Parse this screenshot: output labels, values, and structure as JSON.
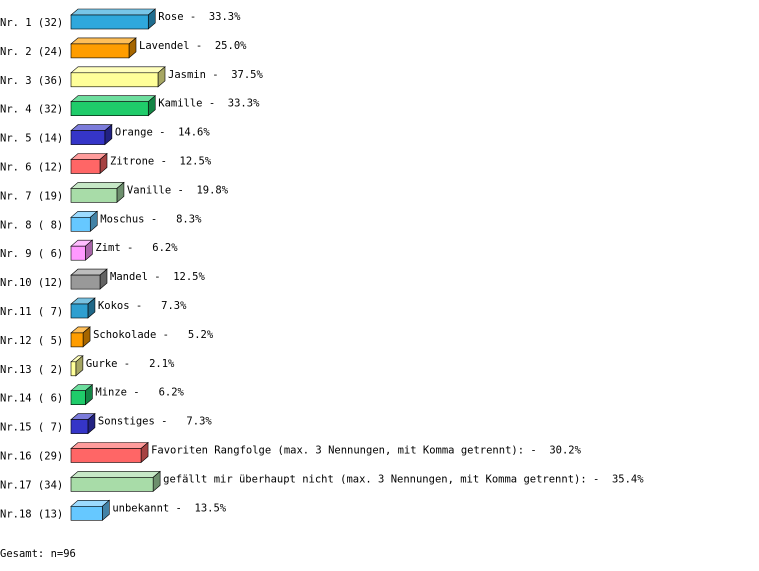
{
  "chart_data": {
    "type": "bar",
    "orientation": "horizontal",
    "categories": [
      "Nr. 1 (32)",
      "Nr. 2 (24)",
      "Nr. 3 (36)",
      "Nr. 4 (32)",
      "Nr. 5 (14)",
      "Nr. 6 (12)",
      "Nr. 7 (19)",
      "Nr. 8 ( 8)",
      "Nr. 9 ( 6)",
      "Nr.10 (12)",
      "Nr.11 ( 7)",
      "Nr.12 ( 5)",
      "Nr.13 ( 2)",
      "Nr.14 ( 6)",
      "Nr.15 ( 7)",
      "Nr.16 (29)",
      "Nr.17 (34)",
      "Nr.18 (13)"
    ],
    "values": [
      33.3,
      25.0,
      37.5,
      33.3,
      14.6,
      12.5,
      19.8,
      8.3,
      6.2,
      12.5,
      7.3,
      5.2,
      2.1,
      6.2,
      7.3,
      30.2,
      35.4,
      13.5
    ],
    "value_labels": [
      "Rose -  33.3%",
      "Lavendel -  25.0%",
      "Jasmin -  37.5%",
      "Kamille -  33.3%",
      "Orange -  14.6%",
      "Zitrone -  12.5%",
      "Vanille -  19.8%",
      "Moschus -   8.3%",
      "Zimt -   6.2%",
      "Mandel -  12.5%",
      "Kokos -   7.3%",
      "Schokolade -   5.2%",
      "Gurke -   2.1%",
      "Minze -   6.2%",
      "Sonstiges -   7.3%",
      "Favoriten Rangfolge (max. 3 Nennungen, mit Komma getrennt): -  30.2%",
      "gefällt mir überhaupt nicht (max. 3 Nennungen, mit Komma getrennt): -  35.4%",
      "unbekannt -  13.5%"
    ],
    "colors": [
      "#2fa8dc",
      "#ff9d00",
      "#ffff99",
      "#1fcc6a",
      "#3535c8",
      "#ff6666",
      "#a8dca8",
      "#66c8ff",
      "#ff99ff",
      "#999999",
      "#2f9fd0",
      "#ff9d00",
      "#ffff99",
      "#1fcc6a",
      "#3535c8",
      "#ff6666",
      "#a8dca8",
      "#66c8ff"
    ],
    "footer": "Gesamt: n=96"
  }
}
